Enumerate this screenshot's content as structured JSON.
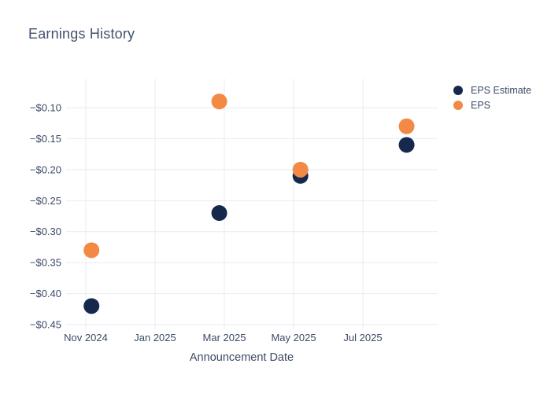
{
  "page": {
    "background": "#ffffff"
  },
  "chart_data": {
    "type": "scatter",
    "title": "Earnings History",
    "xlabel": "Announcement Date",
    "ylabel": "",
    "grid": true,
    "grid_color": "#e7ebf2",
    "axis_text_color": "#3b4a66",
    "legend_position": "top-right",
    "marker_diameter_px": 20,
    "ylim": [
      -0.45,
      -0.053
    ],
    "x": [
      "2024-11-06",
      "2025-02-27",
      "2025-05-07",
      "2025-08-09"
    ],
    "series": [
      {
        "name": "EPS Estimate",
        "color": "#16294c",
        "values": [
          -0.42,
          -0.27,
          -0.21,
          -0.16
        ]
      },
      {
        "name": "EPS",
        "color": "#f28a46",
        "values": [
          -0.33,
          -0.09,
          -0.2,
          -0.13
        ]
      }
    ],
    "x_ticks": [
      {
        "label": "Nov 2024",
        "date": "2024-11-01"
      },
      {
        "label": "Jan 2025",
        "date": "2025-01-01"
      },
      {
        "label": "Mar 2025",
        "date": "2025-03-01"
      },
      {
        "label": "May 2025",
        "date": "2025-05-01"
      },
      {
        "label": "Jul 2025",
        "date": "2025-07-01"
      }
    ],
    "y_ticks": [
      {
        "label": "−$0.10",
        "value": -0.1
      },
      {
        "label": "−$0.15",
        "value": -0.15
      },
      {
        "label": "−$0.20",
        "value": -0.2
      },
      {
        "label": "−$0.25",
        "value": -0.25
      },
      {
        "label": "−$0.30",
        "value": -0.3
      },
      {
        "label": "−$0.35",
        "value": -0.35
      },
      {
        "label": "−$0.40",
        "value": -0.4
      },
      {
        "label": "−$0.45",
        "value": -0.45
      }
    ]
  }
}
